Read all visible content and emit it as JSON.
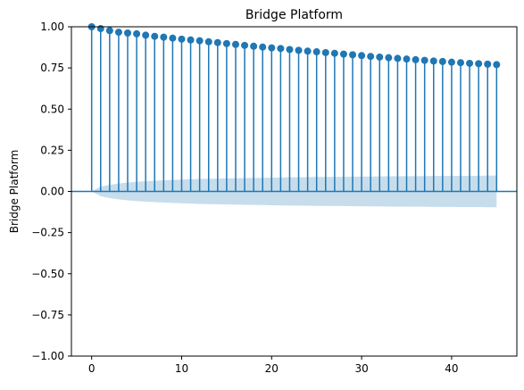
{
  "chart_data": {
    "type": "stem",
    "title": "Bridge Platform",
    "xlabel": "",
    "ylabel": "Bridge Platform",
    "xlim": [
      -2.25,
      47.25
    ],
    "ylim": [
      -1.0,
      1.0
    ],
    "x_ticks": [
      0,
      10,
      20,
      30,
      40
    ],
    "x_tick_labels": [
      "0",
      "10",
      "20",
      "30",
      "40"
    ],
    "y_ticks": [
      -1.0,
      -0.75,
      -0.5,
      -0.25,
      0.0,
      0.25,
      0.5,
      0.75,
      1.0
    ],
    "y_tick_labels": [
      "−1.00",
      "−0.75",
      "−0.50",
      "−0.25",
      "0.00",
      "0.25",
      "0.50",
      "0.75",
      "1.00"
    ],
    "lags": [
      0,
      1,
      2,
      3,
      4,
      5,
      6,
      7,
      8,
      9,
      10,
      11,
      12,
      13,
      14,
      15,
      16,
      17,
      18,
      19,
      20,
      21,
      22,
      23,
      24,
      25,
      26,
      27,
      28,
      29,
      30,
      31,
      32,
      33,
      34,
      35,
      36,
      37,
      38,
      39,
      40,
      41,
      42,
      43,
      44,
      45
    ],
    "values": [
      1.0,
      0.989,
      0.977,
      0.967,
      0.962,
      0.957,
      0.949,
      0.942,
      0.937,
      0.931,
      0.925,
      0.92,
      0.915,
      0.909,
      0.904,
      0.898,
      0.893,
      0.887,
      0.882,
      0.877,
      0.872,
      0.868,
      0.862,
      0.857,
      0.852,
      0.848,
      0.843,
      0.839,
      0.834,
      0.83,
      0.825,
      0.82,
      0.816,
      0.812,
      0.808,
      0.804,
      0.8,
      0.796,
      0.792,
      0.789,
      0.785,
      0.782,
      0.778,
      0.776,
      0.773,
      0.77
    ],
    "confidence_band_upper": [
      0.0,
      0.029,
      0.04,
      0.048,
      0.054,
      0.058,
      0.062,
      0.065,
      0.068,
      0.07,
      0.072,
      0.074,
      0.076,
      0.077,
      0.078,
      0.079,
      0.08,
      0.081,
      0.082,
      0.083,
      0.084,
      0.085,
      0.086,
      0.086,
      0.087,
      0.088,
      0.088,
      0.089,
      0.089,
      0.09,
      0.09,
      0.091,
      0.091,
      0.092,
      0.092,
      0.093,
      0.093,
      0.093,
      0.094,
      0.094,
      0.094,
      0.095,
      0.095,
      0.095,
      0.096,
      0.096
    ],
    "colors": {
      "stem": "#1f77b4",
      "band": "#1f77b4",
      "axes": "#000000"
    }
  }
}
